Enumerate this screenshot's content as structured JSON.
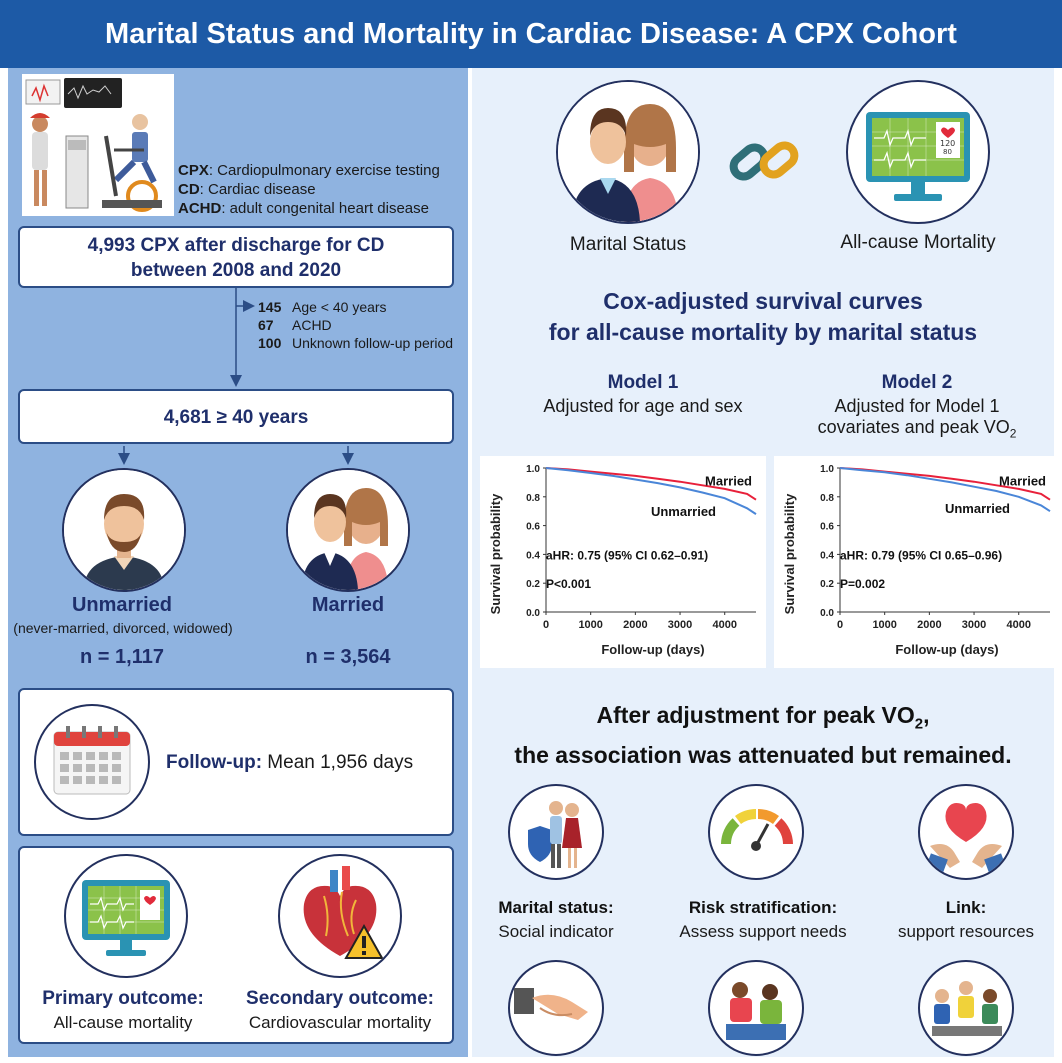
{
  "header": {
    "title": "Marital Status and Mortality in Cardiac Disease: A CPX Cohort"
  },
  "abbreviations": [
    {
      "term": "CPX",
      "definition": ": Cardiopulmonary exercise testing"
    },
    {
      "term": "CD",
      "definition": ": Cardiac disease"
    },
    {
      "term": "ACHD",
      "definition": ": adult congenital heart disease"
    }
  ],
  "flow": {
    "box1_line1": "4,993 CPX after discharge for CD",
    "box1_line2": "between 2008 and 2020",
    "exclusions": [
      {
        "n": "145",
        "reason": "Age < 40 years"
      },
      {
        "n": "67",
        "reason": "ACHD"
      },
      {
        "n": "100",
        "reason": "Unknown follow-up period"
      }
    ],
    "box2": "4,681 ≥ 40 years"
  },
  "groups": {
    "unmarried_label": "Unmarried",
    "unmarried_sub": "(never-married, divorced, widowed)",
    "unmarried_n": "n = 1,117",
    "married_label": "Married",
    "married_n": "n = 3,564"
  },
  "followup": {
    "label": "Follow-up:",
    "value": " Mean 1,956 days"
  },
  "outcomes": {
    "primary_label": "Primary outcome:",
    "primary_value": "All-cause mortality",
    "secondary_label": "Secondary outcome:",
    "secondary_value": "Cardiovascular mortality"
  },
  "top_right": {
    "marital_label": "Marital Status",
    "mortality_label": "All-cause Mortality"
  },
  "cox_title_line1": "Cox-adjusted survival curves",
  "cox_title_line2": "for all-cause mortality by marital status",
  "models": [
    {
      "title": "Model 1",
      "desc1": "Adjusted for age and sex",
      "desc2": ""
    },
    {
      "title": "Model 2",
      "desc1": "Adjusted for Model 1",
      "desc2": "covariates and peak VO"
    }
  ],
  "chart_data": [
    {
      "type": "line",
      "xlabel": "Follow-up (days)",
      "ylabel": "Survival probability",
      "xlim": [
        0,
        4700
      ],
      "ylim": [
        0.0,
        1.0
      ],
      "x_ticks": [
        "0",
        "1000",
        "2000",
        "3000",
        "4000"
      ],
      "y_ticks": [
        "0.0",
        "0.2",
        "0.4",
        "0.6",
        "0.8",
        "1.0"
      ],
      "annotation_hr": "aHR: 0.75 (95% CI 0.62–0.91)",
      "annotation_p": "P<0.001",
      "series": [
        {
          "name": "Married",
          "color": "#e8203a",
          "x": [
            0,
            500,
            1000,
            1500,
            2000,
            2500,
            3000,
            3500,
            4000,
            4500,
            4700
          ],
          "y": [
            1.0,
            0.99,
            0.975,
            0.96,
            0.945,
            0.925,
            0.905,
            0.88,
            0.855,
            0.82,
            0.78
          ]
        },
        {
          "name": "Unmarried",
          "color": "#4a86d8",
          "x": [
            0,
            500,
            1000,
            1500,
            2000,
            2500,
            3000,
            3500,
            4000,
            4500,
            4700
          ],
          "y": [
            1.0,
            0.985,
            0.965,
            0.945,
            0.92,
            0.895,
            0.865,
            0.83,
            0.79,
            0.72,
            0.68
          ]
        }
      ]
    },
    {
      "type": "line",
      "xlabel": "Follow-up (days)",
      "ylabel": "Survival probability",
      "xlim": [
        0,
        4700
      ],
      "ylim": [
        0.0,
        1.0
      ],
      "x_ticks": [
        "0",
        "1000",
        "2000",
        "3000",
        "4000"
      ],
      "y_ticks": [
        "0.0",
        "0.2",
        "0.4",
        "0.6",
        "0.8",
        "1.0"
      ],
      "annotation_hr": "aHR: 0.79 (95% CI 0.65–0.96)",
      "annotation_p": "P=0.002",
      "series": [
        {
          "name": "Married",
          "color": "#e8203a",
          "x": [
            0,
            500,
            1000,
            1500,
            2000,
            2500,
            3000,
            3500,
            4000,
            4500,
            4700
          ],
          "y": [
            1.0,
            0.99,
            0.975,
            0.96,
            0.945,
            0.925,
            0.905,
            0.88,
            0.855,
            0.82,
            0.78
          ]
        },
        {
          "name": "Unmarried",
          "color": "#4a86d8",
          "x": [
            0,
            500,
            1000,
            1500,
            2000,
            2500,
            3000,
            3500,
            4000,
            4500,
            4700
          ],
          "y": [
            1.0,
            0.985,
            0.97,
            0.95,
            0.925,
            0.9,
            0.87,
            0.84,
            0.8,
            0.74,
            0.7
          ]
        }
      ]
    }
  ],
  "conclusion_line1": "After adjustment for peak VO",
  "conclusion_line1_tail": ",",
  "conclusion_line2": "the association was attenuated but remained.",
  "implications": [
    {
      "title": "Marital status:",
      "desc": "Social indicator"
    },
    {
      "title": "Risk stratification:",
      "desc": "Assess support needs"
    },
    {
      "title": "Link:",
      "desc": "support resources"
    }
  ],
  "colors": {
    "header": "#1d5aa6",
    "left_panel": "#8fb3e0",
    "right_panel": "#e7f0fb",
    "navy": "#1f2f6b",
    "married": "#e8203a",
    "unmarried": "#4a86d8"
  }
}
